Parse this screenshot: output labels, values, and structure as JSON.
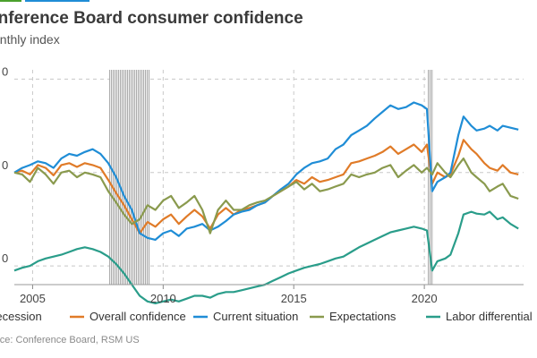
{
  "header": {
    "title": "onference Board consumer confidence",
    "subtitle": "onthly index",
    "source": "urce: Conference Board, RSM US",
    "bar_colors": [
      "#4aa02c",
      "#1f8dd6"
    ]
  },
  "chart_data": {
    "type": "line",
    "title": "onference Board consumer confidence",
    "subtitle": "onthly index",
    "xlim": [
      2004.3,
      2023.8
    ],
    "ylim": [
      -70,
      160
    ],
    "y_ticks": [
      {
        "value": 150,
        "label": "0"
      },
      {
        "value": 50,
        "label": "0"
      },
      {
        "value": -50,
        "label": "0"
      }
    ],
    "x_ticks": [
      2005,
      2010,
      2015,
      2020
    ],
    "recessions": [
      [
        2007.95,
        2009.5
      ],
      [
        2020.15,
        2020.35
      ]
    ],
    "series": [
      {
        "name": "Recession",
        "color": "#9a9a9a",
        "legend_only": true
      },
      {
        "name": "Overall confidence",
        "color": "#e07b28",
        "points": [
          [
            2004.3,
            50
          ],
          [
            2004.6,
            52
          ],
          [
            2004.9,
            48
          ],
          [
            2005.2,
            58
          ],
          [
            2005.5,
            55
          ],
          [
            2005.8,
            47
          ],
          [
            2006.1,
            58
          ],
          [
            2006.4,
            60
          ],
          [
            2006.7,
            56
          ],
          [
            2007.0,
            60
          ],
          [
            2007.3,
            58
          ],
          [
            2007.6,
            55
          ],
          [
            2007.9,
            42
          ],
          [
            2008.2,
            28
          ],
          [
            2008.5,
            15
          ],
          [
            2008.8,
            0
          ],
          [
            2009.1,
            -15
          ],
          [
            2009.4,
            -3
          ],
          [
            2009.7,
            -8
          ],
          [
            2010.0,
            0
          ],
          [
            2010.3,
            5
          ],
          [
            2010.6,
            -5
          ],
          [
            2010.9,
            3
          ],
          [
            2011.2,
            10
          ],
          [
            2011.5,
            3
          ],
          [
            2011.8,
            -10
          ],
          [
            2012.1,
            5
          ],
          [
            2012.4,
            12
          ],
          [
            2012.7,
            5
          ],
          [
            2013.0,
            10
          ],
          [
            2013.3,
            12
          ],
          [
            2013.6,
            15
          ],
          [
            2013.9,
            18
          ],
          [
            2014.2,
            25
          ],
          [
            2014.5,
            30
          ],
          [
            2014.8,
            35
          ],
          [
            2015.1,
            42
          ],
          [
            2015.4,
            38
          ],
          [
            2015.7,
            45
          ],
          [
            2016.0,
            40
          ],
          [
            2016.3,
            42
          ],
          [
            2016.6,
            45
          ],
          [
            2016.9,
            48
          ],
          [
            2017.2,
            60
          ],
          [
            2017.5,
            62
          ],
          [
            2017.8,
            65
          ],
          [
            2018.1,
            68
          ],
          [
            2018.4,
            72
          ],
          [
            2018.7,
            78
          ],
          [
            2019.0,
            70
          ],
          [
            2019.3,
            75
          ],
          [
            2019.6,
            80
          ],
          [
            2019.9,
            72
          ],
          [
            2020.1,
            80
          ],
          [
            2020.3,
            38
          ],
          [
            2020.5,
            50
          ],
          [
            2020.8,
            45
          ],
          [
            2021.0,
            48
          ],
          [
            2021.3,
            68
          ],
          [
            2021.5,
            85
          ],
          [
            2021.8,
            75
          ],
          [
            2022.0,
            70
          ],
          [
            2022.3,
            60
          ],
          [
            2022.5,
            55
          ],
          [
            2022.8,
            52
          ],
          [
            2023.0,
            58
          ],
          [
            2023.3,
            50
          ],
          [
            2023.6,
            48
          ]
        ]
      },
      {
        "name": "Current situation",
        "color": "#1f8dd6",
        "points": [
          [
            2004.3,
            50
          ],
          [
            2004.6,
            55
          ],
          [
            2004.9,
            58
          ],
          [
            2005.2,
            62
          ],
          [
            2005.5,
            60
          ],
          [
            2005.8,
            55
          ],
          [
            2006.1,
            65
          ],
          [
            2006.4,
            70
          ],
          [
            2006.7,
            68
          ],
          [
            2007.0,
            72
          ],
          [
            2007.3,
            75
          ],
          [
            2007.6,
            70
          ],
          [
            2007.9,
            60
          ],
          [
            2008.2,
            45
          ],
          [
            2008.5,
            25
          ],
          [
            2008.8,
            10
          ],
          [
            2009.1,
            -15
          ],
          [
            2009.4,
            -20
          ],
          [
            2009.7,
            -22
          ],
          [
            2010.0,
            -15
          ],
          [
            2010.3,
            -12
          ],
          [
            2010.6,
            -18
          ],
          [
            2010.9,
            -10
          ],
          [
            2011.2,
            -8
          ],
          [
            2011.5,
            -5
          ],
          [
            2011.8,
            -12
          ],
          [
            2012.1,
            -8
          ],
          [
            2012.4,
            -2
          ],
          [
            2012.7,
            5
          ],
          [
            2013.0,
            8
          ],
          [
            2013.3,
            10
          ],
          [
            2013.6,
            15
          ],
          [
            2013.9,
            18
          ],
          [
            2014.2,
            25
          ],
          [
            2014.5,
            32
          ],
          [
            2014.8,
            38
          ],
          [
            2015.1,
            48
          ],
          [
            2015.4,
            55
          ],
          [
            2015.7,
            60
          ],
          [
            2016.0,
            62
          ],
          [
            2016.3,
            65
          ],
          [
            2016.6,
            75
          ],
          [
            2016.9,
            80
          ],
          [
            2017.2,
            90
          ],
          [
            2017.5,
            95
          ],
          [
            2017.8,
            100
          ],
          [
            2018.1,
            108
          ],
          [
            2018.4,
            115
          ],
          [
            2018.7,
            122
          ],
          [
            2019.0,
            118
          ],
          [
            2019.3,
            120
          ],
          [
            2019.6,
            125
          ],
          [
            2019.9,
            122
          ],
          [
            2020.1,
            118
          ],
          [
            2020.3,
            30
          ],
          [
            2020.5,
            40
          ],
          [
            2020.8,
            45
          ],
          [
            2021.0,
            50
          ],
          [
            2021.3,
            90
          ],
          [
            2021.5,
            110
          ],
          [
            2021.8,
            100
          ],
          [
            2022.0,
            95
          ],
          [
            2022.3,
            97
          ],
          [
            2022.5,
            100
          ],
          [
            2022.8,
            95
          ],
          [
            2023.0,
            100
          ],
          [
            2023.3,
            98
          ],
          [
            2023.6,
            96
          ]
        ]
      },
      {
        "name": "Expectations",
        "color": "#8a9a4e",
        "points": [
          [
            2004.3,
            50
          ],
          [
            2004.6,
            48
          ],
          [
            2004.9,
            40
          ],
          [
            2005.2,
            55
          ],
          [
            2005.5,
            48
          ],
          [
            2005.8,
            38
          ],
          [
            2006.1,
            50
          ],
          [
            2006.4,
            52
          ],
          [
            2006.7,
            45
          ],
          [
            2007.0,
            50
          ],
          [
            2007.3,
            48
          ],
          [
            2007.6,
            45
          ],
          [
            2007.9,
            30
          ],
          [
            2008.2,
            18
          ],
          [
            2008.5,
            5
          ],
          [
            2008.8,
            -5
          ],
          [
            2009.1,
            0
          ],
          [
            2009.4,
            15
          ],
          [
            2009.7,
            10
          ],
          [
            2010.0,
            20
          ],
          [
            2010.3,
            25
          ],
          [
            2010.6,
            12
          ],
          [
            2010.9,
            18
          ],
          [
            2011.2,
            25
          ],
          [
            2011.5,
            10
          ],
          [
            2011.8,
            -15
          ],
          [
            2012.1,
            10
          ],
          [
            2012.4,
            20
          ],
          [
            2012.7,
            10
          ],
          [
            2013.0,
            10
          ],
          [
            2013.3,
            15
          ],
          [
            2013.6,
            18
          ],
          [
            2013.9,
            20
          ],
          [
            2014.2,
            25
          ],
          [
            2014.5,
            30
          ],
          [
            2014.8,
            35
          ],
          [
            2015.1,
            40
          ],
          [
            2015.4,
            32
          ],
          [
            2015.7,
            38
          ],
          [
            2016.0,
            30
          ],
          [
            2016.3,
            32
          ],
          [
            2016.6,
            35
          ],
          [
            2016.9,
            38
          ],
          [
            2017.2,
            48
          ],
          [
            2017.5,
            45
          ],
          [
            2017.8,
            48
          ],
          [
            2018.1,
            50
          ],
          [
            2018.4,
            55
          ],
          [
            2018.7,
            58
          ],
          [
            2019.0,
            45
          ],
          [
            2019.3,
            52
          ],
          [
            2019.6,
            58
          ],
          [
            2019.9,
            50
          ],
          [
            2020.1,
            55
          ],
          [
            2020.3,
            48
          ],
          [
            2020.5,
            60
          ],
          [
            2020.8,
            50
          ],
          [
            2021.0,
            45
          ],
          [
            2021.3,
            58
          ],
          [
            2021.5,
            65
          ],
          [
            2021.8,
            50
          ],
          [
            2022.0,
            45
          ],
          [
            2022.3,
            38
          ],
          [
            2022.5,
            30
          ],
          [
            2022.8,
            35
          ],
          [
            2023.0,
            38
          ],
          [
            2023.3,
            25
          ],
          [
            2023.6,
            22
          ]
        ]
      },
      {
        "name": "Labor differential",
        "color": "#2a9d8a",
        "points": [
          [
            2004.3,
            -55
          ],
          [
            2004.6,
            -52
          ],
          [
            2004.9,
            -50
          ],
          [
            2005.2,
            -45
          ],
          [
            2005.5,
            -42
          ],
          [
            2005.8,
            -40
          ],
          [
            2006.1,
            -38
          ],
          [
            2006.4,
            -35
          ],
          [
            2006.7,
            -32
          ],
          [
            2007.0,
            -30
          ],
          [
            2007.3,
            -32
          ],
          [
            2007.6,
            -35
          ],
          [
            2007.9,
            -40
          ],
          [
            2008.2,
            -48
          ],
          [
            2008.5,
            -58
          ],
          [
            2008.8,
            -70
          ],
          [
            2009.1,
            -82
          ],
          [
            2009.4,
            -88
          ],
          [
            2009.7,
            -90
          ],
          [
            2010.0,
            -88
          ],
          [
            2010.3,
            -86
          ],
          [
            2010.6,
            -88
          ],
          [
            2010.9,
            -85
          ],
          [
            2011.2,
            -82
          ],
          [
            2011.5,
            -82
          ],
          [
            2011.8,
            -84
          ],
          [
            2012.1,
            -80
          ],
          [
            2012.4,
            -78
          ],
          [
            2012.7,
            -78
          ],
          [
            2013.0,
            -76
          ],
          [
            2013.3,
            -74
          ],
          [
            2013.6,
            -72
          ],
          [
            2013.9,
            -70
          ],
          [
            2014.2,
            -66
          ],
          [
            2014.5,
            -62
          ],
          [
            2014.8,
            -58
          ],
          [
            2015.1,
            -55
          ],
          [
            2015.4,
            -52
          ],
          [
            2015.7,
            -50
          ],
          [
            2016.0,
            -48
          ],
          [
            2016.3,
            -45
          ],
          [
            2016.6,
            -42
          ],
          [
            2016.9,
            -40
          ],
          [
            2017.2,
            -35
          ],
          [
            2017.5,
            -30
          ],
          [
            2017.8,
            -26
          ],
          [
            2018.1,
            -22
          ],
          [
            2018.4,
            -18
          ],
          [
            2018.7,
            -14
          ],
          [
            2019.0,
            -12
          ],
          [
            2019.3,
            -10
          ],
          [
            2019.6,
            -8
          ],
          [
            2019.9,
            -10
          ],
          [
            2020.1,
            -12
          ],
          [
            2020.3,
            -55
          ],
          [
            2020.5,
            -45
          ],
          [
            2020.8,
            -42
          ],
          [
            2021.0,
            -38
          ],
          [
            2021.3,
            -15
          ],
          [
            2021.5,
            5
          ],
          [
            2021.8,
            8
          ],
          [
            2022.0,
            6
          ],
          [
            2022.3,
            5
          ],
          [
            2022.5,
            8
          ],
          [
            2022.8,
            0
          ],
          [
            2023.0,
            2
          ],
          [
            2023.3,
            -5
          ],
          [
            2023.6,
            -10
          ]
        ]
      }
    ]
  }
}
